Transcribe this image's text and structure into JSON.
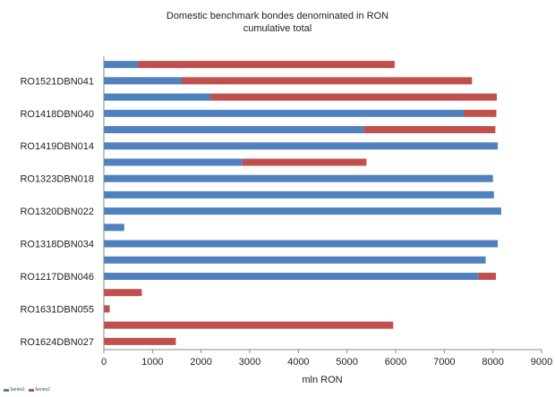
{
  "chart_data": {
    "type": "bar",
    "orientation": "horizontal",
    "stacked": true,
    "title": "Domestic benchmark bondes denominated in RON",
    "subtitle": "cumulative total",
    "xlabel": "mln RON",
    "ylabel": "",
    "xlim": [
      0,
      9000
    ],
    "xticks": [
      "0",
      "1000",
      "2000",
      "3000",
      "4000",
      "5000",
      "6000",
      "7000",
      "8000",
      "9000"
    ],
    "grid": false,
    "legend_position": "bottom-left",
    "colors": {
      "Series1": "#4f81bd",
      "Series2": "#c0504d"
    },
    "categories": [
      "",
      "RO1521DBN041",
      "",
      "RO1418DBN040",
      "",
      "RO1419DBN014",
      "",
      "RO1323DBN018",
      "",
      "RO1320DBN022",
      "",
      "RO1318DBN034",
      "",
      "RO1217DBN046",
      "",
      "RO1631DBN055",
      "",
      "RO1624DBN027"
    ],
    "series": [
      {
        "name": "Series1",
        "values": [
          700,
          1600,
          2200,
          7400,
          5350,
          8100,
          2850,
          8000,
          8020,
          8170,
          420,
          8100,
          7850,
          7700,
          0,
          0,
          0,
          0
        ]
      },
      {
        "name": "Series2",
        "values": [
          5280,
          5970,
          5880,
          670,
          2700,
          0,
          2550,
          0,
          0,
          0,
          0,
          0,
          0,
          360,
          780,
          120,
          5950,
          1480
        ]
      }
    ]
  }
}
